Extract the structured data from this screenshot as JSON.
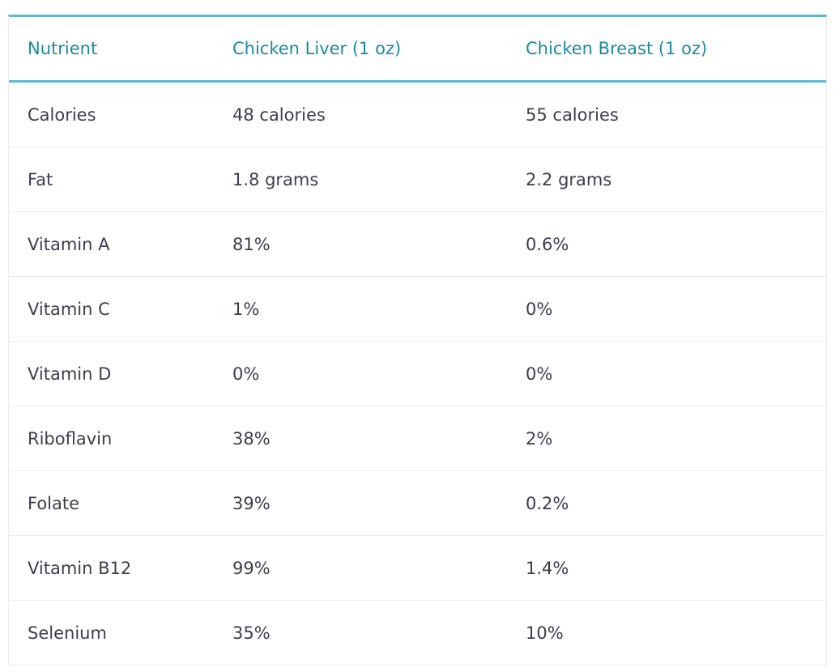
{
  "table": {
    "headers": [
      "Nutrient",
      "Chicken Liver (1 oz)",
      "Chicken Breast (1 oz)"
    ],
    "rows": [
      [
        "Calories",
        "48 calories",
        "55 calories"
      ],
      [
        "Fat",
        "1.8 grams",
        "2.2 grams"
      ],
      [
        "Vitamin A",
        "81%",
        "0.6%"
      ],
      [
        "Vitamin C",
        "1%",
        "0%"
      ],
      [
        "Vitamin D",
        "0%",
        "0%"
      ],
      [
        "Riboflavin",
        "38%",
        "2%"
      ],
      [
        "Folate",
        "39%",
        "0.2%"
      ],
      [
        "Vitamin B12",
        "99%",
        "1.4%"
      ],
      [
        "Selenium",
        "35%",
        "10%"
      ]
    ]
  },
  "colors": {
    "accent": "#5db7d6",
    "header_text": "#1a8aa3",
    "body_text": "#3a3f4e",
    "row_divider": "#ececec"
  }
}
